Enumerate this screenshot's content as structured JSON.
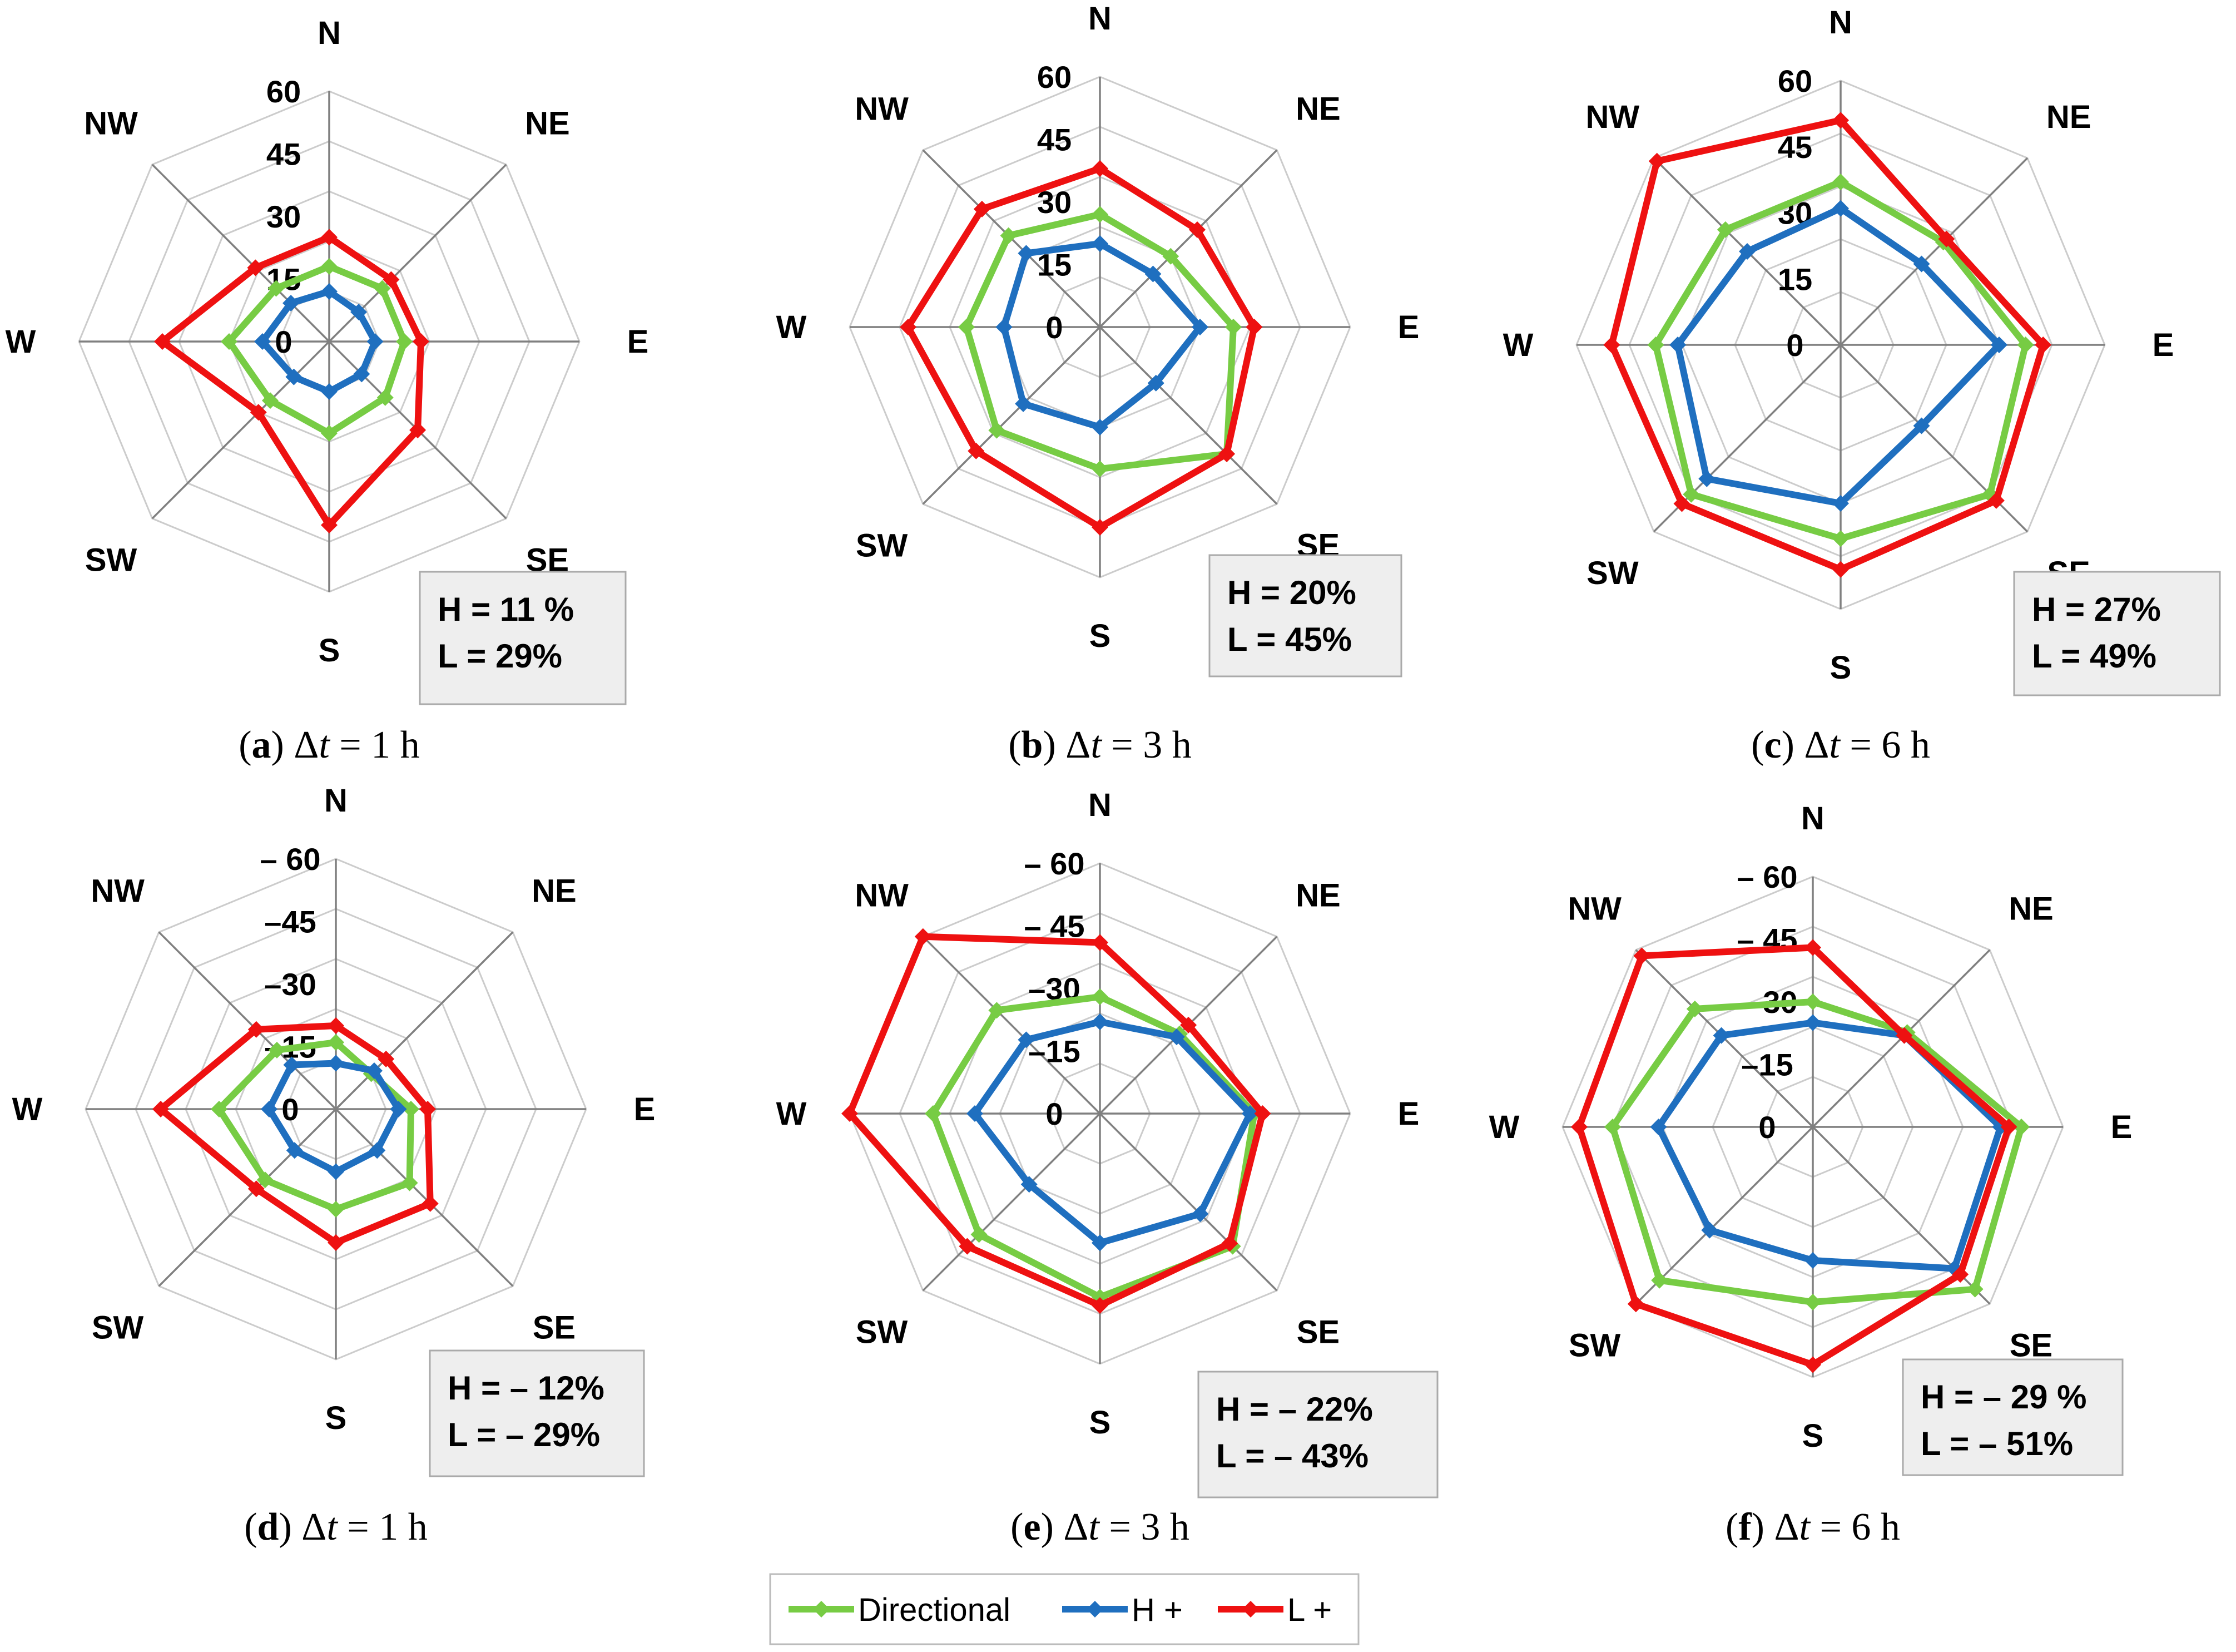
{
  "colors": {
    "directional": "#77CC44",
    "h_plus": "#1F6FBF",
    "l_plus": "#EE1111",
    "grid": "#CCCCCC",
    "axis": "#808080",
    "box_fill": "#EEEEEE",
    "box_stroke": "#AAAAAA"
  },
  "legend": [
    {
      "key": "directional",
      "label": "Directional"
    },
    {
      "key": "h_plus",
      "label": "H +"
    },
    {
      "key": "l_plus",
      "label": "L +"
    }
  ],
  "chart_data": [
    {
      "type": "radar",
      "panel": "a",
      "caption_letter": "a",
      "caption_delta": "Δ",
      "caption_var": "t",
      "caption_rest": " = 1 h",
      "categories": [
        "N",
        "NE",
        "E",
        "SE",
        "S",
        "SW",
        "W",
        "NW"
      ],
      "tick_labels": [
        "0",
        "15",
        "30",
        "45",
        "60"
      ],
      "rmax": 60,
      "annotation": [
        "H = 11 %",
        "L = 29%"
      ],
      "series": [
        {
          "key": "directional",
          "name": "Directional",
          "values": [
            18,
            18,
            18,
            19,
            22,
            20,
            24,
            18
          ]
        },
        {
          "key": "h_plus",
          "name": "H +",
          "values": [
            12,
            10,
            11,
            11,
            12,
            12,
            16,
            13
          ]
        },
        {
          "key": "l_plus",
          "name": "L +",
          "values": [
            25,
            21,
            22,
            30,
            44,
            24,
            40,
            25
          ]
        }
      ]
    },
    {
      "type": "radar",
      "panel": "b",
      "caption_letter": "b",
      "caption_delta": "Δ",
      "caption_var": "t",
      "caption_rest": " = 3 h",
      "categories": [
        "N",
        "NE",
        "E",
        "SE",
        "S",
        "SW",
        "W",
        "NW"
      ],
      "tick_labels": [
        "0",
        "15",
        "30",
        "45",
        "60"
      ],
      "rmax": 60,
      "annotation": [
        "H = 20%",
        "L = 45%"
      ],
      "series": [
        {
          "key": "directional",
          "name": "Directional",
          "values": [
            27,
            24,
            32,
            43,
            34,
            35,
            32,
            31
          ]
        },
        {
          "key": "h_plus",
          "name": "H +",
          "values": [
            20,
            18,
            24,
            19,
            24,
            26,
            23,
            25
          ]
        },
        {
          "key": "l_plus",
          "name": "L +",
          "values": [
            38,
            33,
            37,
            43,
            48,
            42,
            46,
            40
          ]
        }
      ]
    },
    {
      "type": "radar",
      "panel": "c",
      "caption_letter": "c",
      "caption_delta": "Δ",
      "caption_var": "t",
      "caption_rest": " = 6 h",
      "categories": [
        "N",
        "NE",
        "E",
        "SE",
        "S",
        "SW",
        "W",
        "NW"
      ],
      "tick_labels": [
        "0",
        "15",
        "30",
        "45",
        "60"
      ],
      "rmax": 60,
      "annotation": [
        "H = 27%",
        "L = 49%"
      ],
      "series": [
        {
          "key": "directional",
          "name": "Directional",
          "values": [
            37,
            33,
            42,
            48,
            44,
            48,
            42,
            37
          ]
        },
        {
          "key": "h_plus",
          "name": "H +",
          "values": [
            31,
            26,
            36,
            26,
            36,
            43,
            37,
            30
          ]
        },
        {
          "key": "l_plus",
          "name": "L +",
          "values": [
            51,
            34,
            46,
            50,
            51,
            51,
            52,
            59
          ]
        }
      ]
    },
    {
      "type": "radar",
      "panel": "d",
      "caption_letter": "d",
      "caption_delta": "Δ",
      "caption_var": "t",
      "caption_rest": " = 1 h",
      "categories": [
        "N",
        "NE",
        "E",
        "SE",
        "S",
        "SW",
        "W",
        "NW"
      ],
      "tick_labels": [
        "0",
        "–15",
        "–30",
        "–45",
        "– 60"
      ],
      "rmax": 60,
      "annotation": [
        "H = – 12%",
        "L = – 29%"
      ],
      "series": [
        {
          "key": "directional",
          "name": "Directional",
          "values": [
            16,
            12,
            18,
            25,
            24,
            24,
            28,
            20
          ]
        },
        {
          "key": "h_plus",
          "name": "H +",
          "values": [
            11,
            13,
            15,
            14,
            15,
            14,
            16,
            15
          ]
        },
        {
          "key": "l_plus",
          "name": "L +",
          "values": [
            20,
            17,
            22,
            32,
            32,
            27,
            42,
            27
          ]
        }
      ]
    },
    {
      "type": "radar",
      "panel": "e",
      "caption_letter": "e",
      "caption_delta": "Δ",
      "caption_var": "t",
      "caption_rest": " = 3 h",
      "categories": [
        "N",
        "NE",
        "E",
        "SE",
        "S",
        "SW",
        "W",
        "NW"
      ],
      "tick_labels": [
        "0",
        "–15",
        "–30",
        "– 45",
        "– 60"
      ],
      "rmax": 60,
      "annotation": [
        "H = – 22%",
        "L = – 43%"
      ],
      "series": [
        {
          "key": "directional",
          "name": "Directional",
          "values": [
            28,
            27,
            37,
            45,
            44,
            41,
            40,
            35
          ]
        },
        {
          "key": "h_plus",
          "name": "H +",
          "values": [
            22,
            26,
            36,
            34,
            31,
            24,
            30,
            25
          ]
        },
        {
          "key": "l_plus",
          "name": "L +",
          "values": [
            41,
            30,
            39,
            44,
            46,
            45,
            60,
            60
          ]
        }
      ]
    },
    {
      "type": "radar",
      "panel": "f",
      "caption_letter": "f",
      "caption_delta": "Δ",
      "caption_var": "t",
      "caption_rest": " = 6 h",
      "categories": [
        "N",
        "NE",
        "E",
        "SE",
        "S",
        "SW",
        "W",
        "NW"
      ],
      "tick_labels": [
        "0",
        "–15",
        "– 30",
        "– 45",
        "– 60"
      ],
      "rmax": 60,
      "annotation": [
        "H = – 29 %",
        "L = – 51%"
      ],
      "series": [
        {
          "key": "directional",
          "name": "Directional",
          "values": [
            30,
            32,
            50,
            55,
            42,
            52,
            48,
            40
          ]
        },
        {
          "key": "h_plus",
          "name": "H +",
          "values": [
            25,
            31,
            45,
            48,
            32,
            35,
            37,
            31
          ]
        },
        {
          "key": "l_plus",
          "name": "L +",
          "values": [
            43,
            31,
            47,
            50,
            57,
            60,
            56,
            58
          ]
        }
      ]
    }
  ]
}
